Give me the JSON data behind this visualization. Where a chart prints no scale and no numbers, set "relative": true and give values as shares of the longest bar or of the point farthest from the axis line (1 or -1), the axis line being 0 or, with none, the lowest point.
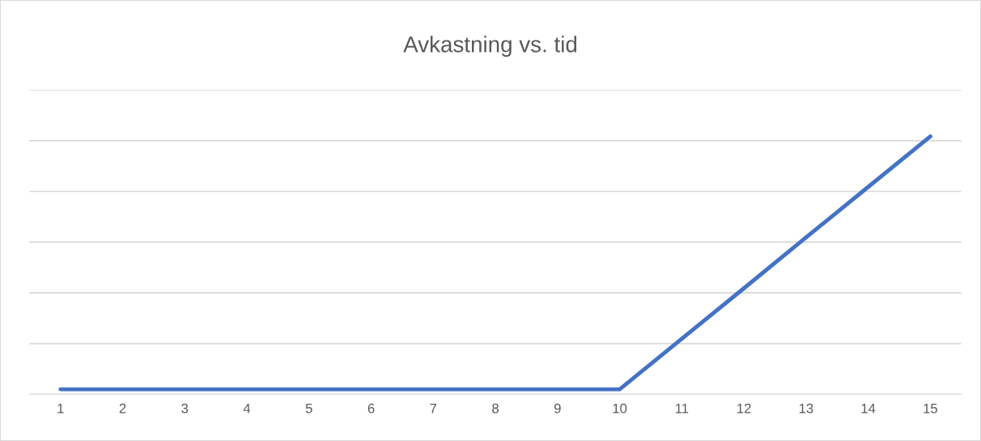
{
  "chart_data": {
    "type": "line",
    "title": "Avkastning vs. tid",
    "categories": [
      "1",
      "2",
      "3",
      "4",
      "5",
      "6",
      "7",
      "8",
      "9",
      "10",
      "11",
      "12",
      "13",
      "14",
      "15"
    ],
    "series": [
      {
        "color": "#4472c4",
        "values": [
          0.019,
          0.019,
          0.019,
          0.019,
          0.019,
          0.019,
          0.019,
          0.019,
          0.019,
          0.019,
          0.215,
          0.411,
          0.608,
          0.804,
          1
        ]
      }
    ],
    "relative": true,
    "grid": "y",
    "marker": "none",
    "line_style": "solid"
  }
}
